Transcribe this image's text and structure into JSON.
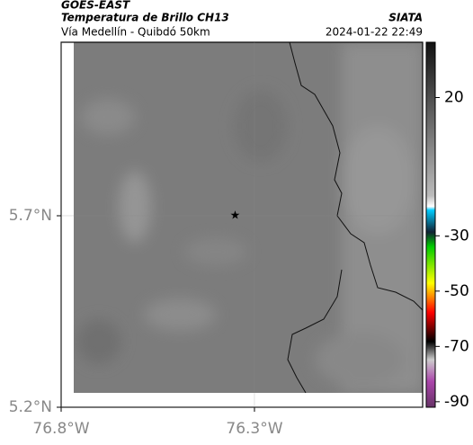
{
  "header": {
    "title": "GOES-EAST",
    "subtitle": "Temperatura de Brillo CH13",
    "source": "SIATA",
    "route": "Vía Medellín - Quibdó 50km",
    "timestamp": "2024-01-22 22:49"
  },
  "map": {
    "xlim": [
      -76.8,
      -75.865
    ],
    "ylim": [
      5.2,
      6.153
    ],
    "xticks": [
      {
        "value": -76.8,
        "label": "76.8°W"
      },
      {
        "value": -76.3,
        "label": "76.3°W"
      }
    ],
    "yticks": [
      {
        "value": 5.7,
        "label": "5.7°N"
      },
      {
        "value": 5.2,
        "label": "5.2°N"
      }
    ],
    "marker": {
      "lon": -76.35,
      "lat": 5.7
    }
  },
  "colorbar": {
    "lim": [
      -92,
      40
    ],
    "ticks": [
      20,
      -30,
      -50,
      -70,
      -90
    ]
  }
}
